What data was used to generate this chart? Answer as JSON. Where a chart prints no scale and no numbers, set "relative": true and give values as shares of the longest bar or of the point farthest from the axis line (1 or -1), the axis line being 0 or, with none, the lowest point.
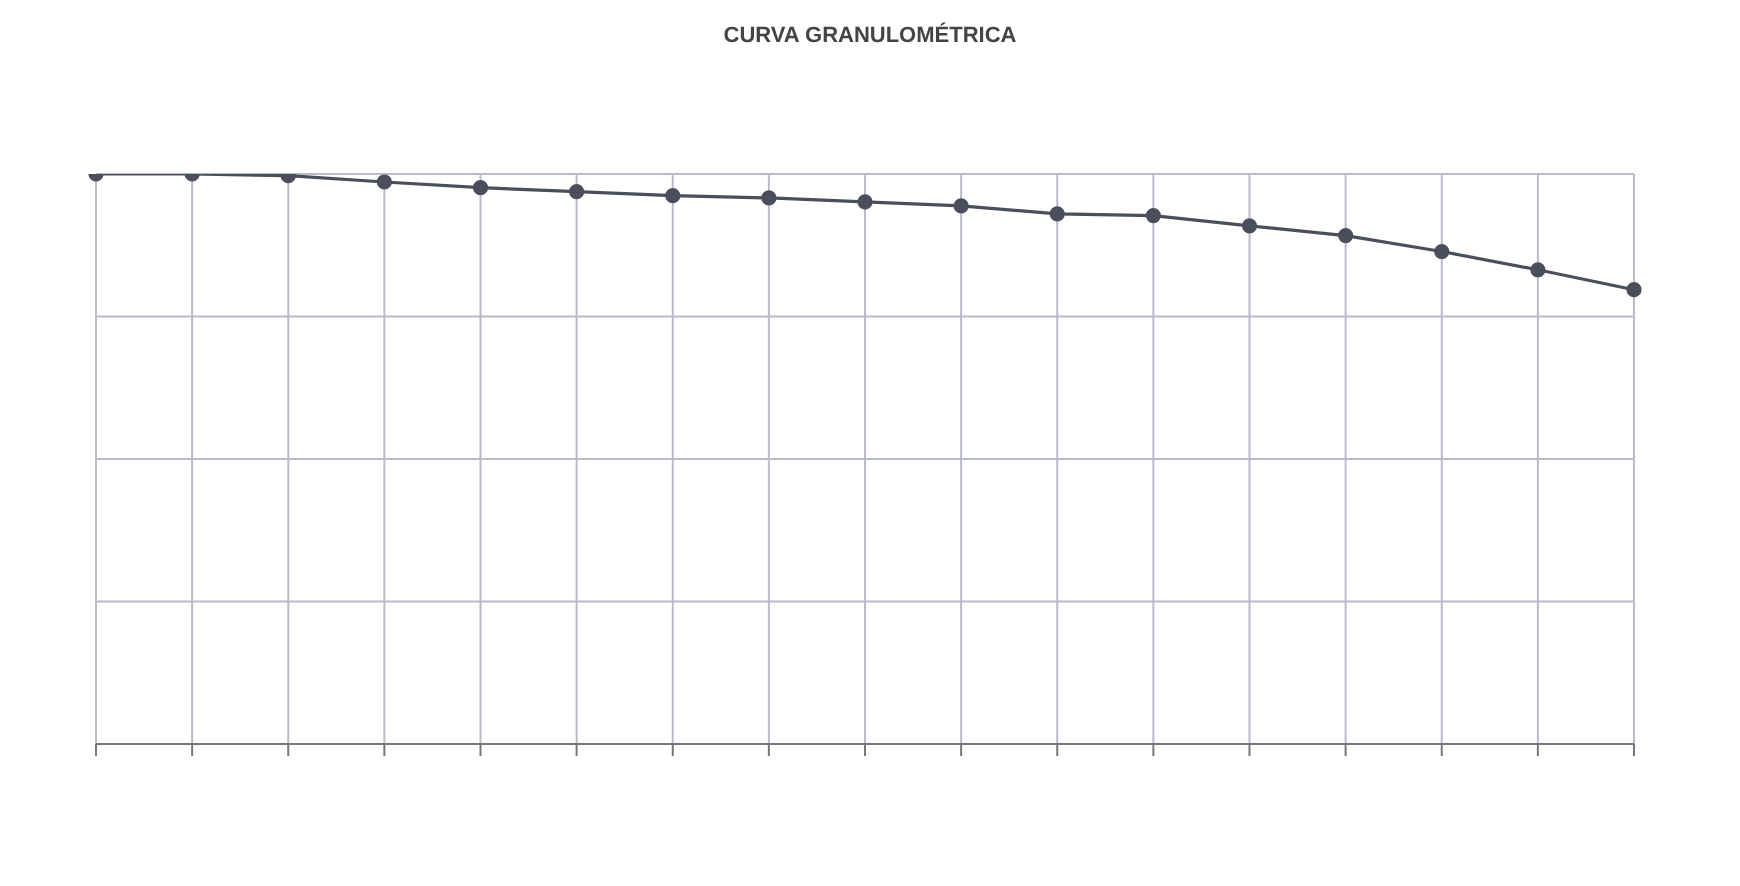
{
  "chart_data": {
    "type": "line",
    "title": "CURVA GRANULOMÉTRICA",
    "relative": true,
    "categories": [
      null,
      null,
      null,
      null,
      null,
      null,
      null,
      null,
      null,
      null,
      null,
      null,
      null,
      null,
      null,
      null,
      null
    ],
    "series": [
      {
        "color": "#4a4f5c",
        "values": [
          1.0,
          1.0,
          0.997,
          0.986,
          0.976,
          0.969,
          0.962,
          0.958,
          0.951,
          0.944,
          0.93,
          0.927,
          0.909,
          0.892,
          0.864,
          0.832,
          0.797
        ]
      }
    ],
    "grid": true,
    "marker": "circle",
    "line_style": "solid"
  }
}
